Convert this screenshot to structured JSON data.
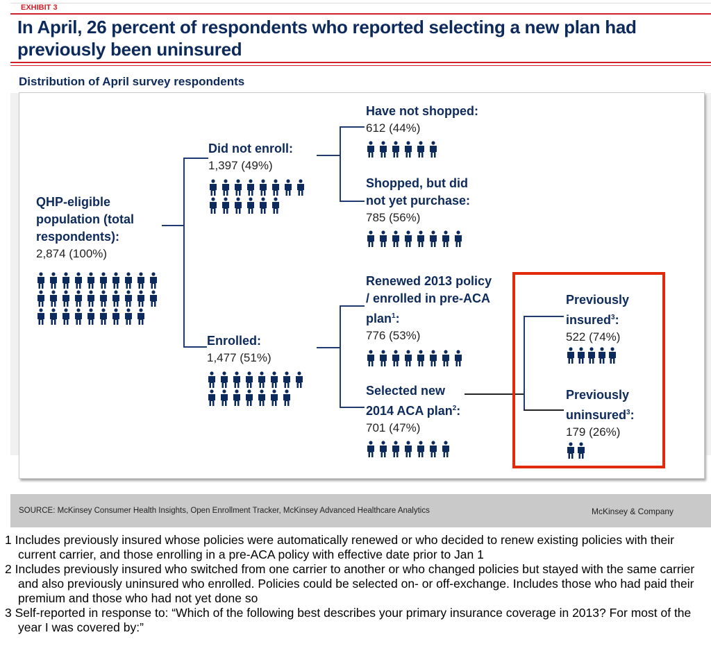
{
  "exhibit_label": "EXHIBIT 3",
  "title": "In April, 26 percent of respondents who reported selecting a new plan had previously been uninsured",
  "subtitle": "Distribution of April survey respondents",
  "colors": {
    "accent_red": "#d0202a",
    "highlight_box": "#e02a0a",
    "navy": "#0d2a5c",
    "icon": "#0d2a5c"
  },
  "icon_name": "person-icon",
  "nodes": {
    "total": {
      "label": "QHP-eligible population (total respondents):",
      "count": "2,874 (100%)",
      "icons": 29,
      "rows": [
        10,
        10,
        9
      ]
    },
    "not_enrolled": {
      "label": "Did not enroll:",
      "count": "1,397 (49%)",
      "icons": 14,
      "rows": [
        8,
        6
      ]
    },
    "enrolled": {
      "label": "Enrolled:",
      "count": "1,477 (51%)",
      "icons": 15,
      "rows": [
        8,
        7
      ]
    },
    "not_shopped": {
      "label": "Have not shopped:",
      "count": "612 (44%)",
      "icons": 6,
      "rows": [
        6
      ]
    },
    "shopped": {
      "label": "Shopped, but did not yet purchase:",
      "count": "785 (56%)",
      "icons": 8,
      "rows": [
        8
      ]
    },
    "renewed": {
      "label": "Renewed 2013 policy / enrolled in pre-ACA plan",
      "sup": "1",
      "count": "776 (53%)",
      "icons": 8,
      "rows": [
        8
      ]
    },
    "new_plan": {
      "label": "Selected new 2014 ACA plan",
      "sup": "2",
      "count": "701 (47%)",
      "icons": 7,
      "rows": [
        7
      ]
    },
    "prev_insured": {
      "label": "Previously insured",
      "sup": "3",
      "count": "522 (74%)",
      "icons": 5,
      "rows": [
        5
      ]
    },
    "prev_uninsured": {
      "label": "Previously uninsured",
      "sup": "3",
      "count": "179 (26%)",
      "icons": 2,
      "rows": [
        2
      ]
    }
  },
  "source": "SOURCE: McKinsey Consumer Health Insights, Open Enrollment Tracker,  McKinsey Advanced Healthcare Analytics",
  "brand": "McKinsey & Company",
  "footnotes": [
    "1 Includes previously insured whose policies were automatically renewed or who decided to renew existing policies with their current carrier, and those enrolling in a pre-ACA policy with effective date prior to Jan 1",
    "2 Includes previously insured who switched from one carrier to another or who changed policies but stayed with the same carrier and also previously uninsured who enrolled. Policies could be selected on- or off-exchange. Includes those who had paid their premium and those who had not yet done so",
    "3 Self-reported in response to: “Which of the following best describes your primary insurance coverage in 2013? For most of the year I was covered by:”"
  ]
}
